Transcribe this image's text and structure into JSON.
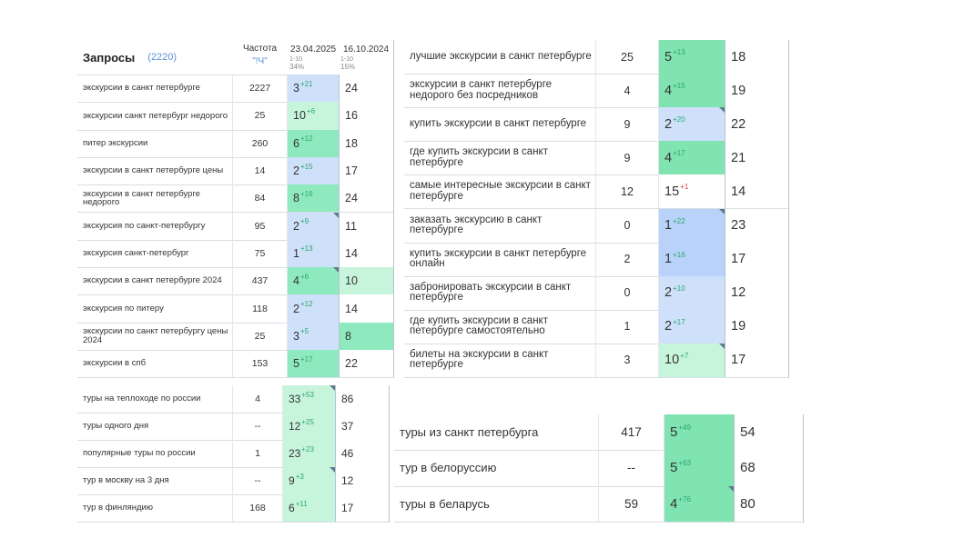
{
  "colors": {
    "light_blue": "#cfe0fb",
    "mid_blue": "#b8d2f9",
    "light_green": "#c7f5dc",
    "mid_green": "#8eeabe",
    "dark_green": "#7fe3b2",
    "delta_up": "#2aa86a",
    "delta_down": "#e2373b",
    "count_text": "#5b8fd6"
  },
  "header": {
    "title": "Запросы",
    "count": "(2220)",
    "freq_label": "Частота",
    "freq_sub": "\"!Ч\"",
    "date1": "23.04.2025",
    "date1_range": "1-10",
    "date1_pct": "34%",
    "date2": "16.10.2024",
    "date2_range": "1-10",
    "date2_pct": "15%"
  },
  "table_a": [
    {
      "q": "экскурсии в санкт петербурге",
      "f": "2227",
      "p1": "3",
      "d": "+21",
      "dir": "up",
      "c": "lb",
      "p2": "24",
      "c2": "w"
    },
    {
      "q": "экскурсии санкт петербург недорого",
      "f": "25",
      "p1": "10",
      "d": "+6",
      "dir": "up",
      "c": "lg",
      "p2": "16",
      "c2": "w"
    },
    {
      "q": "питер экскурсии",
      "f": "260",
      "p1": "6",
      "d": "+12",
      "dir": "up",
      "c": "mg",
      "p2": "18",
      "c2": "w"
    },
    {
      "q": "экскурсии в санкт петербурге цены",
      "f": "14",
      "p1": "2",
      "d": "+15",
      "dir": "up",
      "c": "lb",
      "p2": "17",
      "c2": "w"
    },
    {
      "q": "экскурсии в санкт петербурге недорого",
      "f": "84",
      "p1": "8",
      "d": "+16",
      "dir": "up",
      "c": "mg",
      "p2": "24",
      "c2": "w"
    },
    {
      "q": "экскурсия по санкт-петербургу",
      "f": "95",
      "p1": "2",
      "d": "+9",
      "dir": "up",
      "c": "lb",
      "p2": "11",
      "c2": "w",
      "corner": true
    },
    {
      "q": "экскурсия санкт-петербург",
      "f": "75",
      "p1": "1",
      "d": "+13",
      "dir": "up",
      "c": "lb",
      "p2": "14",
      "c2": "w"
    },
    {
      "q": "экскурсии в санкт петербурге 2024",
      "f": "437",
      "p1": "4",
      "d": "+6",
      "dir": "up",
      "c": "mg",
      "p2": "10",
      "c2": "lg",
      "corner": true
    },
    {
      "q": "экскурсия по питеру",
      "f": "118",
      "p1": "2",
      "d": "+12",
      "dir": "up",
      "c": "lb",
      "p2": "14",
      "c2": "w"
    },
    {
      "q": "экскурсии по санкт петербургу цены 2024",
      "f": "25",
      "p1": "3",
      "d": "+5",
      "dir": "up",
      "c": "lb",
      "p2": "8",
      "c2": "mg"
    },
    {
      "q": "экскурсии в спб",
      "f": "153",
      "p1": "5",
      "d": "+17",
      "dir": "up",
      "c": "mg",
      "p2": "22",
      "c2": "w"
    }
  ],
  "table_b": [
    {
      "q": "лучшие экскурсии в санкт петербурге",
      "f": "25",
      "p1": "5",
      "d": "+13",
      "dir": "up",
      "c": "dg",
      "p2": "18"
    },
    {
      "q": "экскурсии в санкт петербурге недорого без посредников",
      "f": "4",
      "p1": "4",
      "d": "+15",
      "dir": "up",
      "c": "dg",
      "p2": "19"
    },
    {
      "q": "купить экскурсии в санкт петербурге",
      "f": "9",
      "p1": "2",
      "d": "+20",
      "dir": "up",
      "c": "lb",
      "p2": "22",
      "corner": true
    },
    {
      "q": "где купить экскурсии в санкт петербурге",
      "f": "9",
      "p1": "4",
      "d": "+17",
      "dir": "up",
      "c": "dg",
      "p2": "21"
    },
    {
      "q": "самые интересные экскурсии в санкт петербурге",
      "f": "12",
      "p1": "15",
      "d": "+1",
      "dir": "dn",
      "c": "w",
      "p2": "14"
    },
    {
      "q": "заказать экскурсию в санкт петербурге",
      "f": "0",
      "p1": "1",
      "d": "+22",
      "dir": "up",
      "c": "mb",
      "p2": "23",
      "corner": true
    },
    {
      "q": "купить экскурсии в санкт петербурге онлайн",
      "f": "2",
      "p1": "1",
      "d": "+16",
      "dir": "up",
      "c": "mb",
      "p2": "17"
    },
    {
      "q": "забронировать экскурсии в санкт петербурге",
      "f": "0",
      "p1": "2",
      "d": "+10",
      "dir": "up",
      "c": "lb",
      "p2": "12"
    },
    {
      "q": "где купить экскурсии в санкт петербурге самостоятельно",
      "f": "1",
      "p1": "2",
      "d": "+17",
      "dir": "up",
      "c": "lb",
      "p2": "19"
    },
    {
      "q": "билеты на экскурсии в санкт петербурге",
      "f": "3",
      "p1": "10",
      "d": "+7",
      "dir": "up",
      "c": "lg",
      "p2": "17",
      "corner": true
    }
  ],
  "table_c": [
    {
      "q": "туры на теплоходе по россии",
      "f": "4",
      "p1": "33",
      "d": "+53",
      "dir": "up",
      "c": "lg",
      "p2": "86",
      "corner": true
    },
    {
      "q": "туры одного дня",
      "f": "--",
      "p1": "12",
      "d": "+25",
      "dir": "up",
      "c": "lg",
      "p2": "37"
    },
    {
      "q": "популярные туры по россии",
      "f": "1",
      "p1": "23",
      "d": "+23",
      "dir": "up",
      "c": "lg",
      "p2": "46"
    },
    {
      "q": "тур в москву на 3 дня",
      "f": "--",
      "p1": "9",
      "d": "+3",
      "dir": "up",
      "c": "lg",
      "p2": "12",
      "corner": true
    },
    {
      "q": "тур в финляндию",
      "f": "168",
      "p1": "6",
      "d": "+11",
      "dir": "up",
      "c": "lg",
      "p2": "17"
    }
  ],
  "table_d": [
    {
      "q": "туры из санкт петербурга",
      "f": "417",
      "p1": "5",
      "d": "+49",
      "dir": "up",
      "c": "dg",
      "p2": "54"
    },
    {
      "q": "тур в белоруссию",
      "f": "--",
      "p1": "5",
      "d": "+63",
      "dir": "up",
      "c": "dg",
      "p2": "68"
    },
    {
      "q": "туры в беларусь",
      "f": "59",
      "p1": "4",
      "d": "+76",
      "dir": "up",
      "c": "dg",
      "p2": "80",
      "corner": true
    }
  ]
}
